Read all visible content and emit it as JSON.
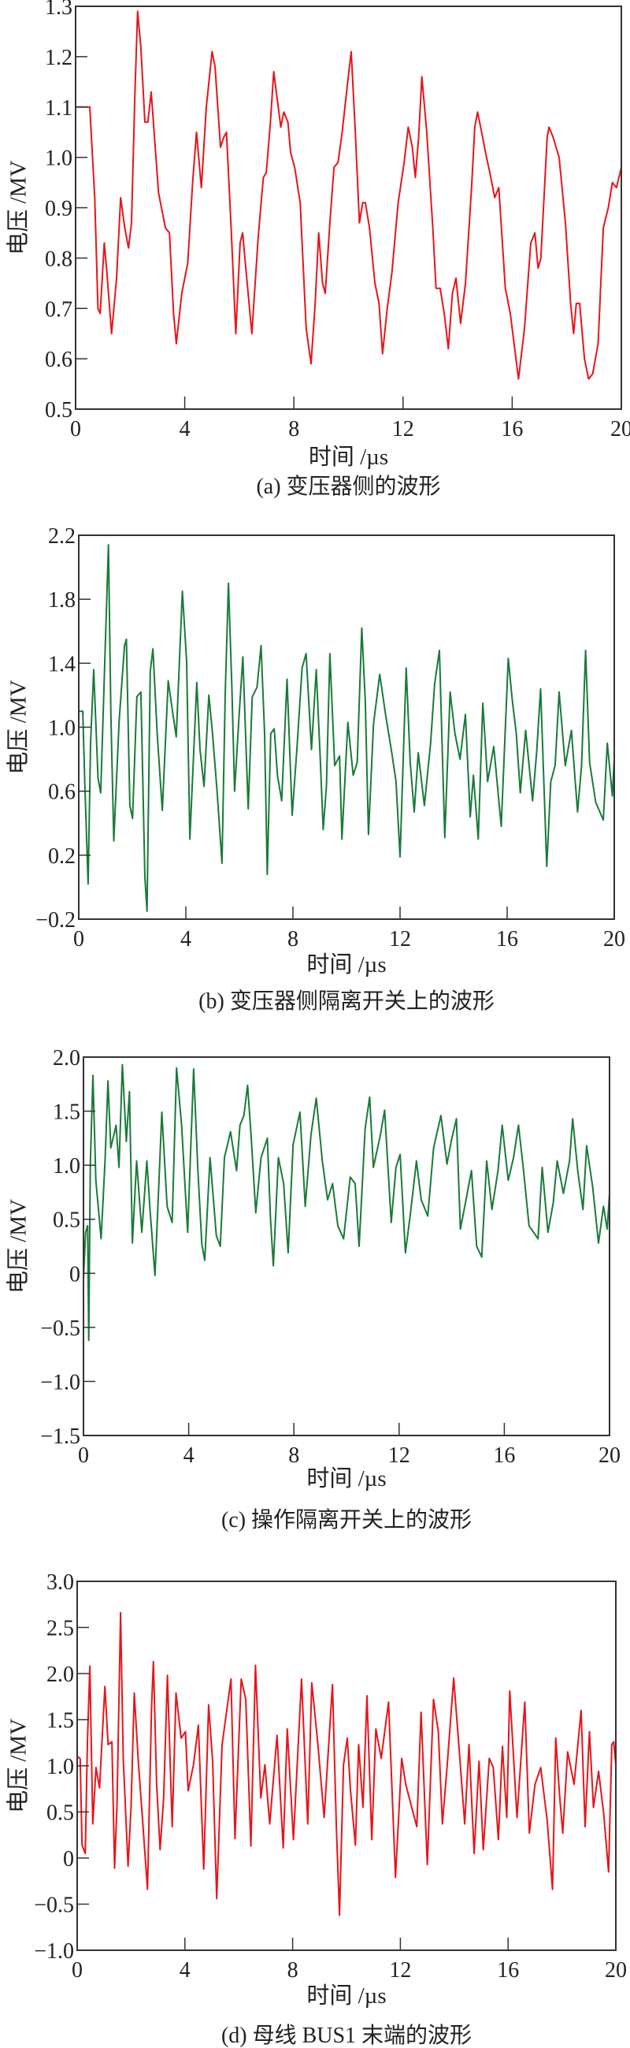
{
  "chart_data": [
    {
      "type": "line",
      "title": "(a) 变压器侧的波形",
      "xlabel": "时间 /µs",
      "ylabel": "电压 /MV",
      "xlim": [
        0,
        20
      ],
      "ylim": [
        0.5,
        1.3
      ],
      "xticks": [
        0,
        4,
        8,
        12,
        16,
        20
      ],
      "xticklabels": [
        "0",
        "4",
        "8",
        "12",
        "16",
        "20"
      ],
      "yticks": [
        0.5,
        0.6,
        0.7,
        0.8,
        0.9,
        1.0,
        1.1,
        1.2,
        1.3
      ],
      "yticklabels": [
        "0.5",
        "0.6",
        "0.7",
        "0.8",
        "0.9",
        "1.0",
        "1.1",
        "1.2",
        "1.3"
      ],
      "grid": false,
      "color": "#e8141b",
      "x": [
        0,
        0.52,
        0.7,
        0.82,
        0.9,
        1.05,
        1.15,
        1.32,
        1.5,
        1.65,
        1.8,
        1.94,
        2.05,
        2.17,
        2.27,
        2.39,
        2.54,
        2.65,
        2.77,
        3.04,
        3.29,
        3.44,
        3.59,
        3.69,
        3.89,
        4.11,
        4.29,
        4.43,
        4.61,
        4.79,
        5.0,
        5.11,
        5.31,
        5.43,
        5.53,
        5.7,
        5.87,
        6.03,
        6.12,
        6.29,
        6.46,
        6.69,
        6.88,
        6.99,
        7.14,
        7.26,
        7.52,
        7.63,
        7.78,
        7.88,
        8.03,
        8.23,
        8.45,
        8.63,
        8.78,
        8.91,
        9.05,
        9.15,
        9.32,
        9.47,
        9.62,
        9.77,
        9.95,
        10.1,
        10.25,
        10.4,
        10.52,
        10.62,
        10.77,
        10.97,
        11.12,
        11.25,
        11.42,
        11.59,
        11.82,
        12.04,
        12.19,
        12.34,
        12.45,
        12.57,
        12.69,
        12.87,
        13.09,
        13.21,
        13.36,
        13.51,
        13.66,
        13.81,
        13.94,
        14.11,
        14.29,
        14.51,
        14.63,
        14.73,
        14.88,
        15.06,
        15.18,
        15.36,
        15.51,
        15.75,
        15.93,
        16.23,
        16.45,
        16.68,
        16.83,
        16.95,
        17.05,
        17.28,
        17.35,
        17.5,
        17.72,
        17.95,
        18.14,
        18.25,
        18.35,
        18.47,
        18.65,
        18.8,
        18.95,
        19.15,
        19.34,
        19.52,
        19.67,
        19.82,
        20.0
      ],
      "y": [
        1.1,
        1.1,
        0.92,
        0.7,
        0.69,
        0.83,
        0.77,
        0.65,
        0.76,
        0.92,
        0.86,
        0.82,
        0.87,
        1.12,
        1.29,
        1.22,
        1.07,
        1.07,
        1.13,
        0.93,
        0.86,
        0.85,
        0.69,
        0.63,
        0.73,
        0.79,
        0.95,
        1.05,
        0.94,
        1.1,
        1.21,
        1.18,
        1.02,
        1.04,
        1.05,
        0.86,
        0.65,
        0.83,
        0.85,
        0.75,
        0.65,
        0.84,
        0.96,
        0.97,
        1.07,
        1.17,
        1.06,
        1.09,
        1.07,
        1.01,
        0.98,
        0.91,
        0.66,
        0.59,
        0.71,
        0.85,
        0.75,
        0.73,
        0.87,
        0.98,
        0.99,
        1.05,
        1.14,
        1.21,
        1.05,
        0.87,
        0.91,
        0.91,
        0.86,
        0.75,
        0.71,
        0.61,
        0.7,
        0.77,
        0.91,
        0.99,
        1.06,
        1.02,
        0.96,
        1.04,
        1.16,
        1.05,
        0.86,
        0.74,
        0.74,
        0.69,
        0.62,
        0.73,
        0.76,
        0.67,
        0.75,
        0.94,
        1.06,
        1.09,
        1.05,
        1.0,
        0.97,
        0.92,
        0.94,
        0.74,
        0.69,
        0.56,
        0.66,
        0.83,
        0.85,
        0.78,
        0.8,
        1.04,
        1.06,
        1.04,
        1.0,
        0.87,
        0.71,
        0.65,
        0.71,
        0.71,
        0.6,
        0.56,
        0.57,
        0.63,
        0.86,
        0.9,
        0.95,
        0.94,
        0.98
      ]
    },
    {
      "type": "line",
      "title": "(b) 变压器侧隔离开关上的波形",
      "xlabel": "时间 /µs",
      "ylabel": "电压 /MV",
      "xlim": [
        0,
        20
      ],
      "ylim": [
        -0.2,
        2.2
      ],
      "xticks": [
        0,
        4,
        8,
        12,
        16,
        20
      ],
      "xticklabels": [
        "0",
        "4",
        "8",
        "12",
        "16",
        "20"
      ],
      "yticks": [
        -0.2,
        0.2,
        0.6,
        1.0,
        1.4,
        1.8,
        2.2
      ],
      "yticklabels": [
        "−0.2",
        "0.2",
        "0.6",
        "1.0",
        "1.4",
        "1.8",
        "2.2"
      ],
      "grid": false,
      "color": "#1a7a3a",
      "x": [
        0,
        0.15,
        0.23,
        0.35,
        0.44,
        0.56,
        0.72,
        0.82,
        0.99,
        1.11,
        1.2,
        1.31,
        1.51,
        1.71,
        1.78,
        1.91,
        2.01,
        2.17,
        2.32,
        2.47,
        2.55,
        2.67,
        2.77,
        2.93,
        3.12,
        3.34,
        3.46,
        3.64,
        3.87,
        4.03,
        4.15,
        4.41,
        4.53,
        4.68,
        4.86,
        4.99,
        5.17,
        5.35,
        5.47,
        5.59,
        5.72,
        5.82,
        5.99,
        6.13,
        6.33,
        6.48,
        6.66,
        6.81,
        6.94,
        7.04,
        7.17,
        7.3,
        7.42,
        7.58,
        7.78,
        7.97,
        8.15,
        8.34,
        8.49,
        8.69,
        8.87,
        9.02,
        9.13,
        9.25,
        9.38,
        9.56,
        9.74,
        9.83,
        10.05,
        10.25,
        10.4,
        10.57,
        10.7,
        10.82,
        11.01,
        11.24,
        11.46,
        11.69,
        11.85,
        12.0,
        12.23,
        12.38,
        12.53,
        12.68,
        12.91,
        13.14,
        13.29,
        13.47,
        13.67,
        13.87,
        14.05,
        14.24,
        14.44,
        14.62,
        14.74,
        14.92,
        15.09,
        15.27,
        15.5,
        15.78,
        16.04,
        16.19,
        16.34,
        16.49,
        16.69,
        16.95,
        17.1,
        17.25,
        17.48,
        17.63,
        17.79,
        17.94,
        18.17,
        18.4,
        18.63,
        18.78,
        18.93,
        19.08,
        19.31,
        19.59,
        19.74,
        19.93,
        20.0
      ],
      "y": [
        1.1,
        1.1,
        0.63,
        0.02,
        0.9,
        1.36,
        0.68,
        0.59,
        1.51,
        2.14,
        1.08,
        0.29,
        1.04,
        1.51,
        1.55,
        0.51,
        0.43,
        1.19,
        1.22,
        0.06,
        -0.15,
        1.35,
        1.49,
        0.96,
        0.48,
        1.29,
        1.15,
        0.94,
        1.85,
        1.41,
        0.3,
        1.28,
        0.86,
        0.63,
        1.2,
        0.97,
        0.59,
        0.15,
        1.21,
        1.9,
        1.24,
        0.6,
        1.08,
        1.44,
        0.49,
        1.19,
        1.25,
        1.51,
        0.96,
        0.08,
        0.96,
        0.99,
        0.7,
        0.54,
        1.3,
        0.45,
        0.87,
        1.37,
        1.46,
        0.86,
        1.36,
        0.8,
        0.36,
        0.63,
        1.46,
        0.76,
        0.82,
        0.3,
        1.03,
        0.7,
        0.78,
        1.62,
        1.17,
        0.33,
        1.02,
        1.33,
        1.08,
        0.84,
        0.66,
        0.19,
        1.37,
        0.78,
        0.47,
        0.84,
        0.51,
        0.9,
        1.27,
        1.48,
        0.31,
        1.22,
        0.96,
        0.8,
        1.08,
        0.44,
        0.7,
        0.3,
        1.15,
        0.66,
        0.88,
        0.38,
        1.43,
        1.17,
        0.96,
        0.59,
        0.98,
        0.54,
        0.84,
        1.24,
        0.13,
        0.66,
        0.76,
        1.22,
        0.76,
        0.98,
        0.47,
        0.76,
        1.48,
        0.78,
        0.53,
        0.42,
        0.9,
        0.57,
        0.8
      ]
    },
    {
      "type": "line",
      "title": "(c) 操作隔离开关上的波形",
      "xlabel": "时间 /µs",
      "ylabel": "电压 /MV",
      "xlim": [
        0,
        20
      ],
      "ylim": [
        -1.5,
        2.0
      ],
      "xticks": [
        0,
        4,
        8,
        12,
        16,
        20
      ],
      "xticklabels": [
        "0",
        "4",
        "8",
        "12",
        "16",
        "20"
      ],
      "yticks": [
        -1.5,
        -1.0,
        -0.5,
        0,
        0.5,
        1.0,
        1.5,
        2.0
      ],
      "yticklabels": [
        "−1.5",
        "−1.0",
        "−0.5",
        "0",
        "0.5",
        "1.0",
        "1.5",
        "2.0"
      ],
      "grid": false,
      "color": "#1a7a3a",
      "x": [
        0,
        0.08,
        0.16,
        0.2,
        0.26,
        0.36,
        0.47,
        0.67,
        0.82,
        0.93,
        1.04,
        1.24,
        1.35,
        1.48,
        1.63,
        1.75,
        1.86,
        2.02,
        2.22,
        2.41,
        2.53,
        2.72,
        2.87,
        2.98,
        3.18,
        3.37,
        3.54,
        3.73,
        3.96,
        4.19,
        4.35,
        4.5,
        4.61,
        4.81,
        5.05,
        5.2,
        5.36,
        5.59,
        5.82,
        5.95,
        6.1,
        6.24,
        6.37,
        6.55,
        6.75,
        6.99,
        7.11,
        7.22,
        7.41,
        7.61,
        7.78,
        7.97,
        8.23,
        8.43,
        8.65,
        8.85,
        9.08,
        9.28,
        9.47,
        9.67,
        9.89,
        10.14,
        10.33,
        10.48,
        10.71,
        10.88,
        11.02,
        11.29,
        11.45,
        11.7,
        11.88,
        12.04,
        12.24,
        12.42,
        12.66,
        12.84,
        13.09,
        13.31,
        13.59,
        13.82,
        13.98,
        14.18,
        14.33,
        14.52,
        14.75,
        14.95,
        15.14,
        15.33,
        15.53,
        15.76,
        15.92,
        16.15,
        16.35,
        16.54,
        16.72,
        16.94,
        17.28,
        17.44,
        17.66,
        17.86,
        18.01,
        18.25,
        18.48,
        18.6,
        18.79,
        18.99,
        19.13,
        19.36,
        19.58,
        19.77,
        19.91,
        20.0
      ],
      "y": [
        -0.05,
        0.38,
        0.44,
        -0.62,
        1.01,
        1.83,
        0.86,
        0.32,
        1.04,
        1.78,
        1.16,
        1.37,
        0.98,
        1.93,
        1.22,
        1.68,
        0.28,
        1.04,
        0.38,
        1.04,
        0.59,
        -0.02,
        0.86,
        1.49,
        0.62,
        0.47,
        1.9,
        1.37,
        0.38,
        1.89,
        0.95,
        0.27,
        0.12,
        1.07,
        0.35,
        0.25,
        1.07,
        1.31,
        0.95,
        1.37,
        1.46,
        1.74,
        1.28,
        0.56,
        1.07,
        1.25,
        0.5,
        0.07,
        1.07,
        0.83,
        0.19,
        1.19,
        1.49,
        0.62,
        1.28,
        1.62,
        1.04,
        0.68,
        0.83,
        0.44,
        0.32,
        0.89,
        0.83,
        0.25,
        1.34,
        1.63,
        0.98,
        1.28,
        1.51,
        0.47,
        0.98,
        1.1,
        0.19,
        0.53,
        1.04,
        0.68,
        0.53,
        1.16,
        1.46,
        1.01,
        1.22,
        1.43,
        0.41,
        0.65,
        0.95,
        0.25,
        0.15,
        1.04,
        0.59,
        0.95,
        1.37,
        0.86,
        1.07,
        1.37,
        0.98,
        0.44,
        0.32,
        0.98,
        0.38,
        0.65,
        1.04,
        0.74,
        1.04,
        1.43,
        0.95,
        0.59,
        1.18,
        0.8,
        0.28,
        0.62,
        0.41,
        0.74
      ]
    },
    {
      "type": "line",
      "title": "(d) 母线 BUS1 末端的波形",
      "xlabel": "时间 /µs",
      "ylabel": "电压 /MV",
      "xlim": [
        0,
        20
      ],
      "ylim": [
        -1.0,
        3.0
      ],
      "xticks": [
        0,
        4,
        8,
        12,
        16,
        20
      ],
      "xticklabels": [
        "0",
        "4",
        "8",
        "12",
        "16",
        "20"
      ],
      "yticks": [
        -1.0,
        -0.5,
        0,
        0.5,
        1.0,
        1.5,
        2.0,
        2.5,
        3.0
      ],
      "yticklabels": [
        "−1.0",
        "−0.5",
        "0",
        "0.5",
        "1.0",
        "1.5",
        "2.0",
        "2.5",
        "3.0"
      ],
      "grid": false,
      "color": "#e8141b",
      "x": [
        0,
        0.11,
        0.18,
        0.3,
        0.38,
        0.47,
        0.58,
        0.7,
        0.83,
        1.03,
        1.15,
        1.29,
        1.39,
        1.48,
        1.61,
        1.71,
        1.89,
        2.0,
        2.12,
        2.27,
        2.42,
        2.61,
        2.76,
        2.83,
        2.95,
        3.08,
        3.21,
        3.35,
        3.53,
        3.67,
        3.86,
        4.02,
        4.12,
        4.32,
        4.5,
        4.7,
        4.88,
        5.03,
        5.18,
        5.38,
        5.48,
        5.71,
        5.86,
        6.09,
        6.26,
        6.45,
        6.62,
        6.82,
        6.97,
        7.15,
        7.42,
        7.65,
        7.8,
        8.03,
        8.33,
        8.56,
        8.71,
        8.94,
        9.17,
        9.48,
        9.62,
        9.74,
        9.89,
        10.03,
        10.15,
        10.33,
        10.45,
        10.61,
        10.76,
        10.94,
        11.09,
        11.29,
        11.56,
        11.82,
        12.05,
        12.2,
        12.42,
        12.61,
        12.77,
        13.0,
        13.23,
        13.41,
        13.56,
        13.74,
        13.98,
        14.17,
        14.39,
        14.55,
        14.74,
        14.92,
        15.08,
        15.3,
        15.45,
        15.64,
        15.79,
        15.95,
        16.06,
        16.33,
        16.62,
        16.79,
        17.0,
        17.21,
        17.45,
        17.65,
        17.77,
        17.91,
        18.03,
        18.21,
        18.45,
        18.71,
        18.86,
        19.02,
        19.17,
        19.36,
        19.55,
        19.73,
        19.85,
        19.92,
        20.0
      ],
      "y": [
        1.1,
        1.08,
        0.14,
        0.05,
        1.26,
        2.08,
        0.37,
        0.98,
        0.76,
        1.86,
        1.23,
        1.26,
        -0.11,
        0.59,
        2.66,
        1.08,
        -0.09,
        0.55,
        1.79,
        1.05,
        0.44,
        -0.34,
        1.62,
        2.13,
        0.8,
        0.09,
        0.65,
        1.98,
        0.34,
        1.79,
        1.3,
        1.37,
        0.73,
        1.01,
        1.44,
        -0.12,
        1.66,
        1.05,
        -0.44,
        1.23,
        1.44,
        1.94,
        0.21,
        1.94,
        1.72,
        0.13,
        2.09,
        0.65,
        1.01,
        0.37,
        1.33,
        0.11,
        1.4,
        0.2,
        1.94,
        0.37,
        1.9,
        1.23,
        0.44,
        1.88,
        0.37,
        -0.62,
        1.01,
        1.3,
        0.73,
        0.14,
        1.23,
        0.55,
        1.76,
        0.2,
        1.4,
        1.08,
        1.69,
        -0.21,
        1.08,
        0.8,
        0.55,
        0.34,
        1.58,
        -0.07,
        1.72,
        1.37,
        0.37,
        1.01,
        1.95,
        1.23,
        0.37,
        1.23,
        0.05,
        1.05,
        0.09,
        1.08,
        0.98,
        0.2,
        1.21,
        0.44,
        1.81,
        0.44,
        1.69,
        0.27,
        0.8,
        0.98,
        0.41,
        -0.34,
        1.3,
        0.69,
        0.27,
        1.15,
        0.8,
        1.6,
        0.34,
        1.37,
        0.55,
        0.94,
        0.48,
        -0.15,
        1.23,
        1.26,
        1.01
      ]
    }
  ]
}
